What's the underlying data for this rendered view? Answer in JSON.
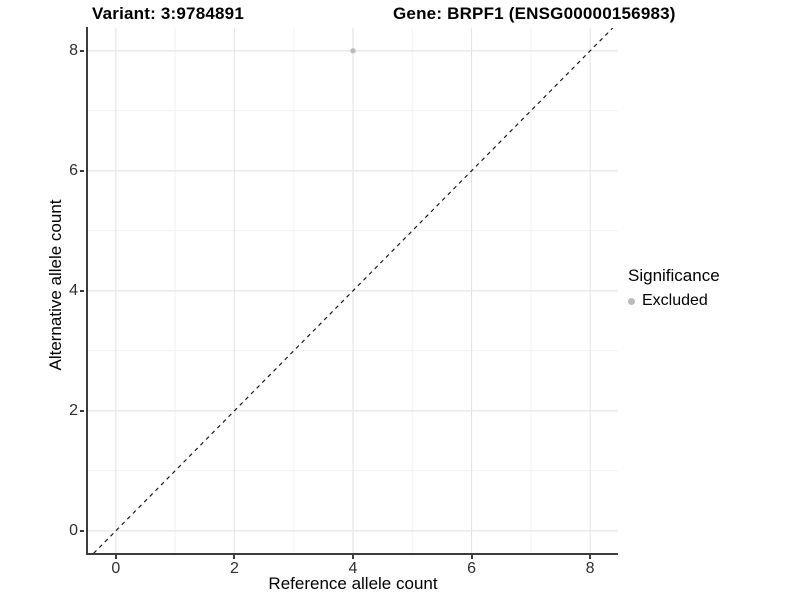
{
  "chart_data": {
    "type": "scatter",
    "titles": [
      "Variant: 3:9784891",
      "Gene: BRPF1 (ENSG00000156983)"
    ],
    "xlabel": "Reference allele count",
    "ylabel": "Alternative allele count",
    "xlim": [
      -0.47,
      8.47
    ],
    "ylim": [
      -0.37,
      8.38
    ],
    "x_ticks": [
      0,
      2,
      4,
      6,
      8
    ],
    "y_ticks": [
      0,
      2,
      4,
      6,
      8
    ],
    "x_minor": [
      1,
      3,
      5,
      7
    ],
    "y_minor": [
      1,
      3,
      5,
      7
    ],
    "grid": "major+minor on white panel",
    "legend_position": "right",
    "legend": {
      "title": "Significance",
      "items": [
        {
          "label": "Excluded",
          "color": "#bcbcbc"
        }
      ]
    },
    "series": [
      {
        "name": "Excluded",
        "color": "#bcbcbc",
        "point_radius": 2.7,
        "points": [
          {
            "x": 4,
            "y": 8
          }
        ]
      }
    ],
    "reference_line": {
      "kind": "identity",
      "dash": "4 4",
      "color": "#1a1a1a"
    },
    "style": {
      "grid_major": "#e4e4e4",
      "grid_minor": "#f2f2f2",
      "axis_line": "#3d3d3d",
      "tick_label_color": "#303030",
      "background": "#ffffff"
    }
  }
}
